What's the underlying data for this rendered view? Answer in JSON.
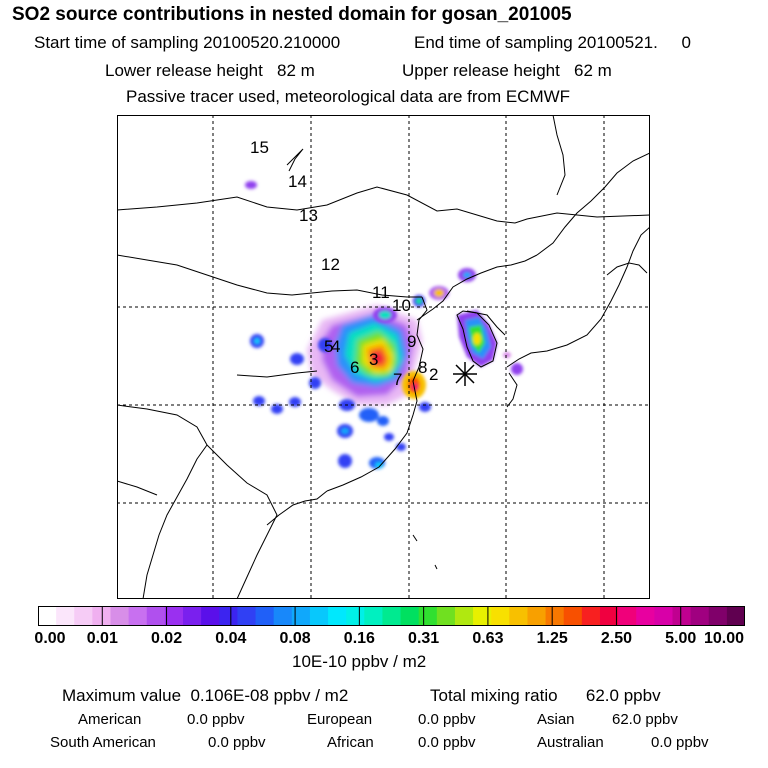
{
  "header": {
    "title": "SO2 source contributions in nested domain for gosan_201005",
    "start_time": "Start time of sampling 20100520.210000",
    "end_time": "End time of sampling 20100521.     0",
    "lower_height": "Lower release height   82 m",
    "upper_height": "Upper release height   62 m",
    "tracer_note": "Passive tracer used, meteorological data are from ECMWF"
  },
  "map": {
    "source_labels": [
      "15",
      "14",
      "13",
      "12",
      "11",
      "10",
      "9",
      "8",
      "7",
      "6",
      "5",
      "4",
      "3",
      "2"
    ],
    "receptor_marker": "star-icon"
  },
  "colorbar": {
    "ticks": [
      "0.00",
      "0.01",
      "0.02",
      "0.04",
      "0.08",
      "0.16",
      "0.31",
      "0.63",
      "1.25",
      "2.50",
      "5.00",
      "10.00"
    ],
    "unit": "10E-10 ppbv / m2",
    "colors": [
      "#ffffff",
      "#fbe6fb",
      "#f6ccf6",
      "#f0b0f0",
      "#d88ee8",
      "#c870f0",
      "#b050ee",
      "#9a30f0",
      "#7a20ee",
      "#5a10ea",
      "#3c24f0",
      "#3040f4",
      "#2060f8",
      "#1888fa",
      "#10a8fb",
      "#08c8fc",
      "#00e8fd",
      "#00f0e8",
      "#00f0c0",
      "#00ea90",
      "#00e060",
      "#30e030",
      "#70e020",
      "#b0e810",
      "#e8f000",
      "#f8e000",
      "#f8c000",
      "#f8a000",
      "#f87800",
      "#f85000",
      "#f82020",
      "#f00040",
      "#f0007a",
      "#e800a0",
      "#d800a8",
      "#c00090",
      "#a00080",
      "#80006a",
      "#600050"
    ]
  },
  "summary": {
    "max_value": "Maximum value  0.106E-08 ppbv / m2",
    "total_mixing": "Total mixing ratio      62.0 ppbv",
    "regions": [
      {
        "name": "American",
        "value": "0.0 ppbv"
      },
      {
        "name": "European",
        "value": "0.0 ppbv"
      },
      {
        "name": "Asian",
        "value": "62.0 ppbv"
      },
      {
        "name": "South American",
        "value": "0.0 ppbv"
      },
      {
        "name": "African",
        "value": "0.0 ppbv"
      },
      {
        "name": "Australian",
        "value": "0.0 ppbv"
      }
    ]
  }
}
